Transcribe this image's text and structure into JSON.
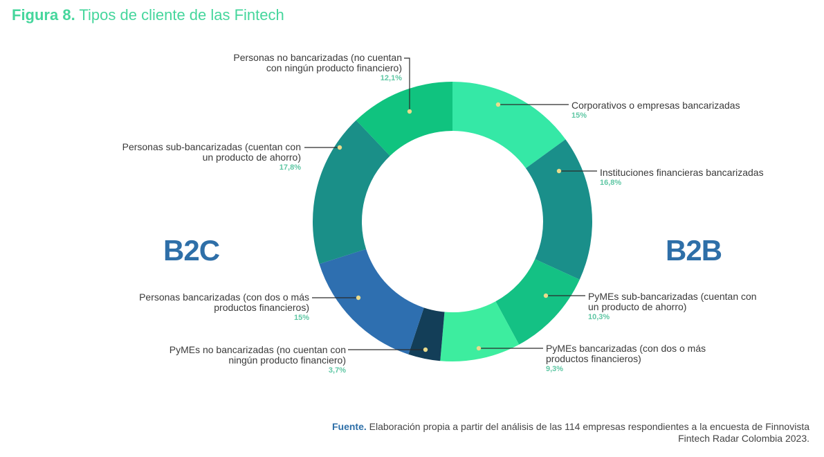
{
  "title": {
    "prefix": "Figura 8.",
    "text": "Tipos de cliente de las Fintech"
  },
  "group_labels": {
    "left": "B2C",
    "right": "B2B"
  },
  "colors": {
    "title": "#45d69c",
    "group": "#2e6fa8",
    "percent": "#5fc7a4",
    "dot": "#eadb8c"
  },
  "chart_data": {
    "type": "pie",
    "variant": "donut",
    "start": "12 o'clock, clockwise",
    "segments": [
      {
        "l1": "Corporativos o empresas bancarizadas",
        "l2": "",
        "pct": "15%",
        "value": 15,
        "color": "#35e8a6",
        "side": "right"
      },
      {
        "l1": "Instituciones financieras bancarizadas",
        "l2": "",
        "pct": "16,8%",
        "value": 16.8,
        "color": "#1a8f8a",
        "side": "right"
      },
      {
        "l1": "PyMEs sub-bancarizadas (cuentan con",
        "l2": "un producto de ahorro)",
        "pct": "10,3%",
        "value": 10.3,
        "color": "#14c184",
        "side": "right"
      },
      {
        "l1": "PyMEs bancarizadas (con dos o más",
        "l2": "productos financieros)",
        "pct": "9,3%",
        "value": 9.3,
        "color": "#3ded9f",
        "side": "right"
      },
      {
        "l1": "PyMEs no bancarizadas (no cuentan con",
        "l2": "ningún producto financiero)",
        "pct": "3,7%",
        "value": 3.7,
        "color": "#133e58",
        "side": "left"
      },
      {
        "l1": "Personas bancarizadas (con dos o más",
        "l2": "productos financieros)",
        "pct": "15%",
        "value": 15,
        "color": "#2e6fb0",
        "side": "left"
      },
      {
        "l1": "Personas sub-bancarizadas (cuentan con",
        "l2": "un producto de ahorro)",
        "pct": "17,8%",
        "value": 17.8,
        "color": "#1a8f88",
        "side": "left"
      },
      {
        "l1": "Personas no bancarizadas (no cuentan",
        "l2": "con ningún producto financiero)",
        "pct": "12,1%",
        "value": 12.1,
        "color": "#10c37f",
        "side": "left"
      }
    ]
  },
  "source": {
    "label": "Fuente.",
    "line1": "Elaboración propia a partir del análisis de las 114 empresas respondientes a la encuesta de Finnovista",
    "line2": "Fintech Radar Colombia 2023."
  }
}
